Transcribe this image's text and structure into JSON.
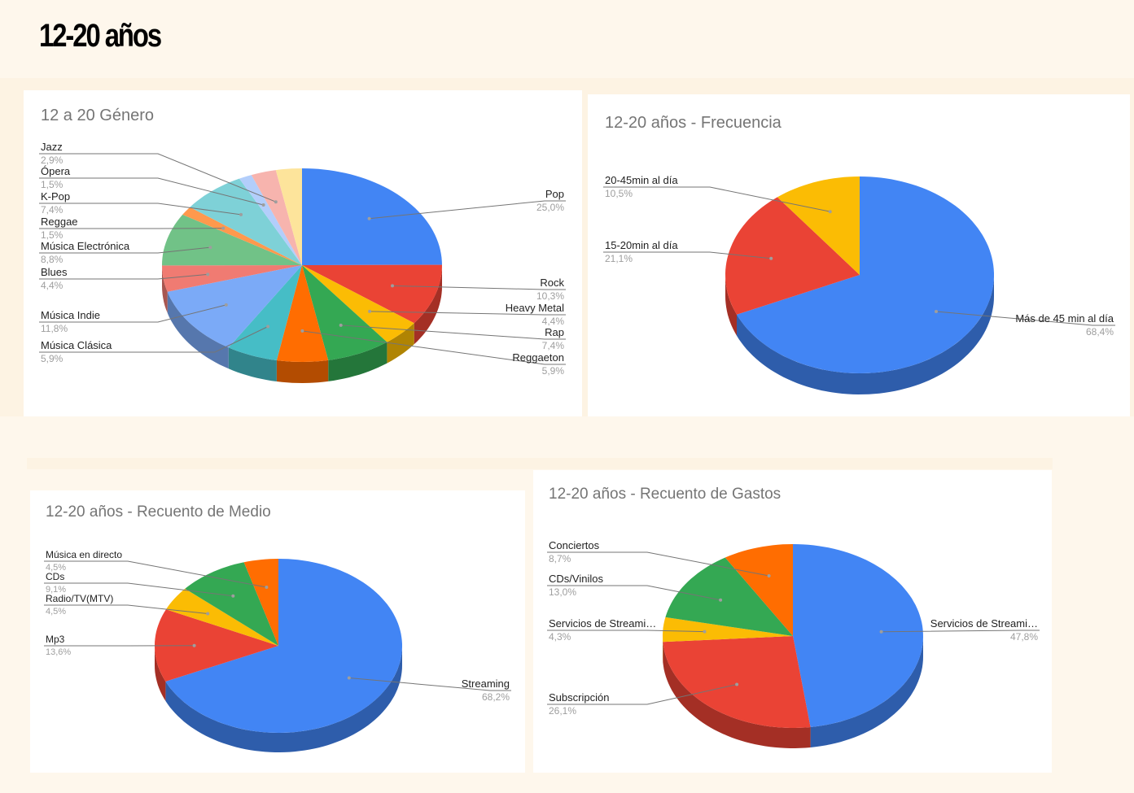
{
  "page": {
    "title": "12-20 años"
  },
  "colors": {
    "blue": "#4285f4",
    "red": "#ea4335",
    "yellow": "#fbbc04",
    "green": "#34a853",
    "orange": "#ff6d01",
    "teal": "#46bdc6",
    "light_blue": "#7baaf7",
    "salmon": "#f07b72",
    "light_yellow": "#fcd04f",
    "light_green": "#71c287",
    "light_orange": "#ff994d",
    "light_teal": "#7ed1d7",
    "pale_blue": "#b3cefb",
    "pale_red": "#f7b4ae",
    "pale_yellow": "#fde49b"
  },
  "chart_data": [
    {
      "type": "pie",
      "title": "12 a 20 Género",
      "slices": [
        {
          "label": "Pop",
          "value": 25.0,
          "display": "25,0%",
          "color": "#4285f4"
        },
        {
          "label": "Rock",
          "value": 10.3,
          "display": "10,3%",
          "color": "#ea4335"
        },
        {
          "label": "Heavy Metal",
          "value": 4.4,
          "display": "4,4%",
          "color": "#fbbc04"
        },
        {
          "label": "Rap",
          "value": 7.4,
          "display": "7,4%",
          "color": "#34a853"
        },
        {
          "label": "Reggaeton",
          "value": 5.9,
          "display": "5,9%",
          "color": "#ff6d01"
        },
        {
          "label": "Música Clásica",
          "value": 5.9,
          "display": "5,9%",
          "color": "#46bdc6"
        },
        {
          "label": "Música Indie",
          "value": 11.8,
          "display": "11,8%",
          "color": "#7baaf7"
        },
        {
          "label": "Blues",
          "value": 4.4,
          "display": "4,4%",
          "color": "#f07b72"
        },
        {
          "label": "Música Electrónica",
          "value": 8.8,
          "display": "8,8%",
          "color": "#71c287"
        },
        {
          "label": "Reggae",
          "value": 1.5,
          "display": "1,5%",
          "color": "#ff994d"
        },
        {
          "label": "K-Pop",
          "value": 7.4,
          "display": "7,4%",
          "color": "#7ed1d7"
        },
        {
          "label": "Ópera",
          "value": 1.5,
          "display": "1,5%",
          "color": "#b3cefb"
        },
        {
          "label": "Jazz",
          "value": 2.9,
          "display": "2,9%",
          "color": "#f7b4ae"
        },
        {
          "label": "",
          "value": 3.0,
          "display": "",
          "color": "#fde49b"
        }
      ]
    },
    {
      "type": "pie",
      "title": "12-20 años - Frecuencia",
      "slices": [
        {
          "label": "Más de 45 min al día",
          "value": 68.4,
          "display": "68,4%",
          "color": "#4285f4"
        },
        {
          "label": "15-20min al día",
          "value": 21.1,
          "display": "21,1%",
          "color": "#ea4335"
        },
        {
          "label": "20-45min al día",
          "value": 10.5,
          "display": "10,5%",
          "color": "#fbbc04"
        }
      ]
    },
    {
      "type": "pie",
      "title": "12-20 años - Recuento de Medio",
      "slices": [
        {
          "label": "Streaming",
          "value": 68.2,
          "display": "68,2%",
          "color": "#4285f4"
        },
        {
          "label": "Mp3",
          "value": 13.6,
          "display": "13,6%",
          "color": "#ea4335"
        },
        {
          "label": "Radio/TV(MTV)",
          "value": 4.5,
          "display": "4,5%",
          "color": "#fbbc04"
        },
        {
          "label": "CDs",
          "value": 9.1,
          "display": "9,1%",
          "color": "#34a853"
        },
        {
          "label": "Música en directo",
          "value": 4.5,
          "display": "4,5%",
          "color": "#ff6d01"
        }
      ]
    },
    {
      "type": "pie",
      "title": "12-20 años - Recuento de Gastos",
      "slices": [
        {
          "label": "Servicios de Streami…",
          "value": 47.8,
          "display": "47,8%",
          "color": "#4285f4"
        },
        {
          "label": "Subscripción",
          "value": 26.1,
          "display": "26,1%",
          "color": "#ea4335"
        },
        {
          "label": "Servicios de Streami…",
          "value": 4.3,
          "display": "4,3%",
          "color": "#fbbc04"
        },
        {
          "label": "CDs/Vinilos",
          "value": 13.0,
          "display": "13,0%",
          "color": "#34a853"
        },
        {
          "label": "Conciertos",
          "value": 8.7,
          "display": "8,7%",
          "color": "#ff6d01"
        }
      ]
    }
  ]
}
